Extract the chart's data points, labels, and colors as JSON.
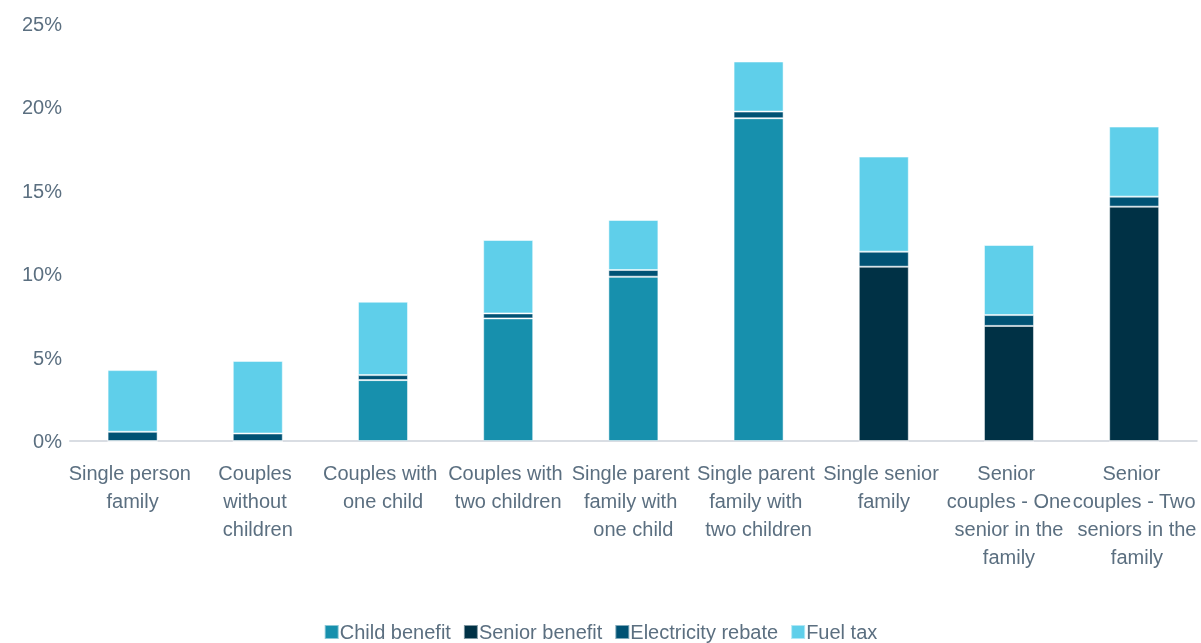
{
  "chart_data": {
    "type": "bar",
    "stacked": true,
    "categories": [
      "Single person family",
      "Couples without children",
      "Couples with one child",
      "Couples with two children",
      "Single parent family with one child",
      "Single parent family with two children",
      "Single senior family",
      "Senior couples - One senior in the family",
      "Senior couples - Two seniors in the family"
    ],
    "series": [
      {
        "name": "Child benefit",
        "color": "#1790ad",
        "values": [
          0,
          0,
          3.65,
          7.35,
          9.85,
          19.35,
          0,
          0,
          0
        ]
      },
      {
        "name": "Senior benefit",
        "color": "#003145",
        "values": [
          0,
          0,
          0,
          0,
          0,
          0,
          10.45,
          6.9,
          14.05
        ]
      },
      {
        "name": "Electricity rebate",
        "color": "#005274",
        "values": [
          0.55,
          0.45,
          0.3,
          0.3,
          0.4,
          0.4,
          0.9,
          0.65,
          0.6
        ]
      },
      {
        "name": "Fuel tax",
        "color": "#5fcfea",
        "values": [
          3.7,
          4.35,
          4.4,
          4.4,
          3.0,
          3.0,
          5.7,
          4.2,
          4.2
        ]
      }
    ],
    "ylim": [
      0,
      25
    ],
    "yticks": [
      {
        "value": 0,
        "label": "0%"
      },
      {
        "value": 5,
        "label": "5%"
      },
      {
        "value": 10,
        "label": "10%"
      },
      {
        "value": 15,
        "label": "15%"
      },
      {
        "value": 20,
        "label": "20%"
      },
      {
        "value": 25,
        "label": "25%"
      }
    ],
    "grid": false,
    "legend": "bottom"
  }
}
